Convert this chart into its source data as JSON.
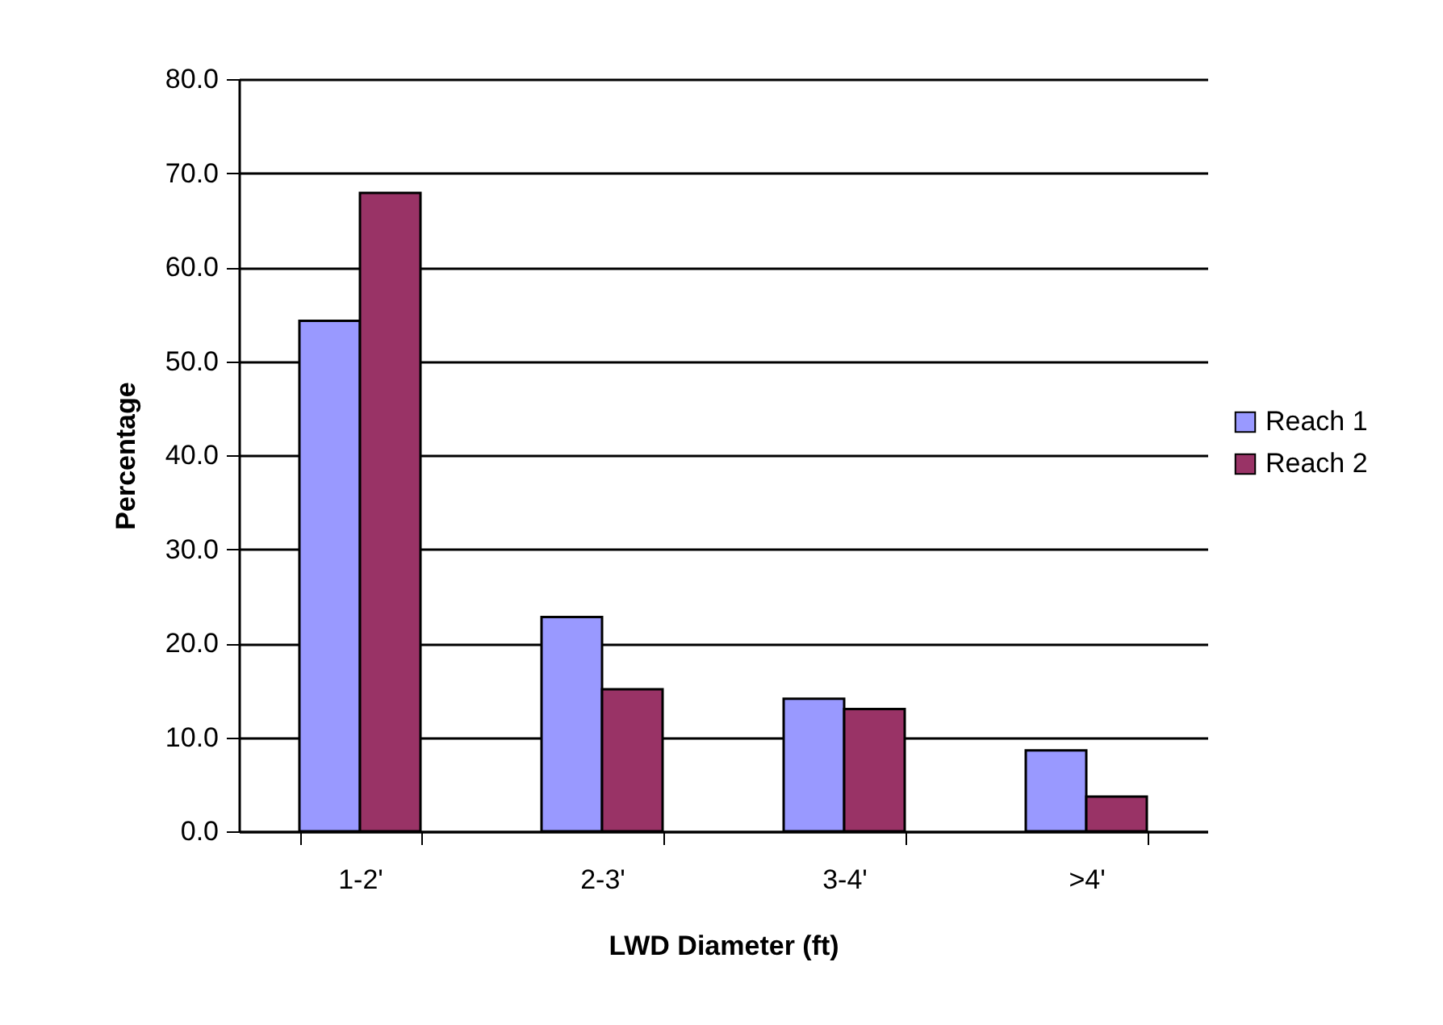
{
  "chart_data": {
    "type": "bar",
    "xlabel": "LWD Diameter (ft)",
    "ylabel": "Percentage",
    "categories": [
      "1-2'",
      "2-3'",
      "3-4'",
      ">4'"
    ],
    "series": [
      {
        "name": "Reach 1",
        "color": "#9999ff",
        "values": [
          54.3,
          22.8,
          14.1,
          8.6
        ]
      },
      {
        "name": "Reach 2",
        "color": "#993366",
        "values": [
          67.9,
          15.1,
          13.0,
          3.7
        ]
      }
    ],
    "ylim": [
      0,
      80
    ],
    "yticks": [
      {
        "value": 0,
        "label": "0.0"
      },
      {
        "value": 10,
        "label": "10.0"
      },
      {
        "value": 20,
        "label": "20.0"
      },
      {
        "value": 30,
        "label": "30.0"
      },
      {
        "value": 40,
        "label": "40.0"
      },
      {
        "value": 50,
        "label": "50.0"
      },
      {
        "value": 60,
        "label": "60.0"
      },
      {
        "value": 70,
        "label": "70.0"
      },
      {
        "value": 80,
        "label": "80.0"
      }
    ],
    "grid": "y",
    "legend": "right"
  }
}
